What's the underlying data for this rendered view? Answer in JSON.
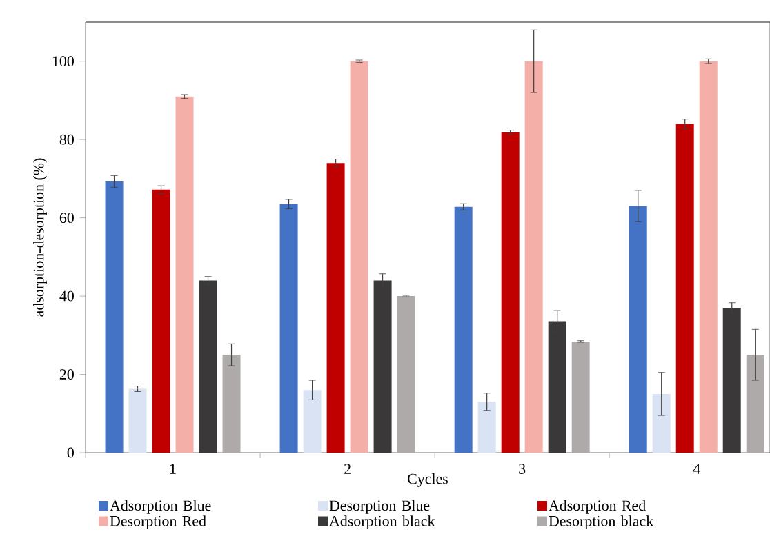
{
  "chart_data": {
    "type": "bar",
    "xlabel": "Cycles",
    "ylabel": "adsorption-desorption (%)",
    "categories": [
      "1",
      "2",
      "3",
      "4"
    ],
    "ylim": [
      0,
      110
    ],
    "yticks": [
      0,
      20,
      40,
      60,
      80,
      100
    ],
    "legend": "bottom",
    "grid": false,
    "series": [
      {
        "name": "Adsorption Blue",
        "color": "#4472c4",
        "values": [
          69.3,
          63.5,
          62.8,
          63
        ],
        "errors": [
          1.5,
          1.2,
          0.8,
          4
        ]
      },
      {
        "name": "Desorption Blue",
        "color": "#dae3f3",
        "values": [
          16.3,
          16,
          13,
          15
        ],
        "errors": [
          0.7,
          2.5,
          2.2,
          5.5
        ]
      },
      {
        "name": "Adsorption Red",
        "color": "#c00000",
        "values": [
          67.2,
          74,
          81.8,
          84
        ],
        "errors": [
          1,
          1,
          0.6,
          1.2
        ]
      },
      {
        "name": "Desorption Red",
        "color": "#f4b0a8",
        "values": [
          91,
          100,
          100,
          100
        ],
        "errors": [
          0.5,
          0.3,
          8,
          0.6
        ]
      },
      {
        "name": "Adsorption black",
        "color": "#3a3838",
        "values": [
          44,
          44,
          33.6,
          37
        ],
        "errors": [
          1,
          1.7,
          2.7,
          1.3
        ]
      },
      {
        "name": "Desorption black",
        "color": "#aeaaaa",
        "values": [
          25,
          40,
          28.4,
          25
        ],
        "errors": [
          2.8,
          0.2,
          0.2,
          6.5
        ]
      }
    ]
  }
}
